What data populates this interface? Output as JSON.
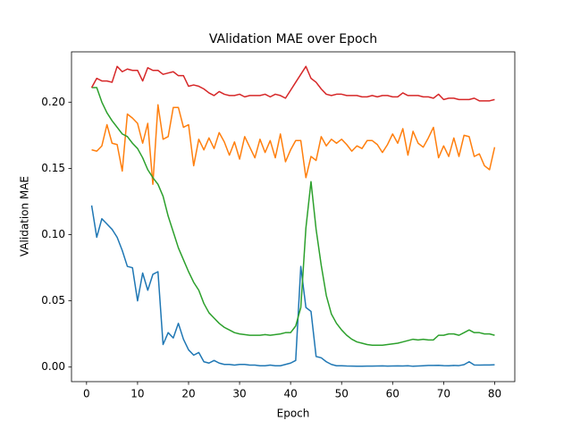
{
  "chart_data": {
    "type": "line",
    "title": "VAlidation MAE over Epoch",
    "x_label": "Epoch",
    "y_label": "VAlidation MAE",
    "x": [
      1,
      2,
      3,
      4,
      5,
      6,
      7,
      8,
      9,
      10,
      11,
      12,
      13,
      14,
      15,
      16,
      17,
      18,
      19,
      20,
      21,
      22,
      23,
      24,
      25,
      26,
      27,
      28,
      29,
      30,
      31,
      32,
      33,
      34,
      35,
      36,
      37,
      38,
      39,
      40,
      41,
      42,
      43,
      44,
      45,
      46,
      47,
      48,
      49,
      50,
      51,
      52,
      53,
      54,
      55,
      56,
      57,
      58,
      59,
      60,
      61,
      62,
      63,
      64,
      65,
      66,
      67,
      68,
      69,
      70,
      71,
      72,
      73,
      74,
      75,
      76,
      77,
      78,
      79,
      80
    ],
    "series": [
      {
        "color": "#1f77b4",
        "values": [
          0.122,
          0.098,
          0.112,
          0.108,
          0.104,
          0.098,
          0.088,
          0.076,
          0.075,
          0.05,
          0.071,
          0.058,
          0.07,
          0.072,
          0.017,
          0.026,
          0.022,
          0.033,
          0.021,
          0.013,
          0.009,
          0.011,
          0.004,
          0.003,
          0.005,
          0.003,
          0.002,
          0.002,
          0.0015,
          0.002,
          0.002,
          0.0015,
          0.0015,
          0.001,
          0.001,
          0.0015,
          0.001,
          0.001,
          0.002,
          0.003,
          0.005,
          0.076,
          0.045,
          0.042,
          0.008,
          0.007,
          0.004,
          0.002,
          0.001,
          0.001,
          0.0008,
          0.0007,
          0.0006,
          0.0006,
          0.0007,
          0.0007,
          0.0008,
          0.0009,
          0.0007,
          0.0008,
          0.0009,
          0.0008,
          0.001,
          0.0006,
          0.0008,
          0.001,
          0.0012,
          0.0012,
          0.0013,
          0.0011,
          0.001,
          0.0012,
          0.0011,
          0.0018,
          0.004,
          0.0016,
          0.0015,
          0.0016,
          0.0016,
          0.0017
        ]
      },
      {
        "color": "#ff7f0e",
        "values": [
          0.164,
          0.163,
          0.167,
          0.183,
          0.169,
          0.168,
          0.148,
          0.191,
          0.188,
          0.184,
          0.169,
          0.184,
          0.138,
          0.198,
          0.172,
          0.174,
          0.196,
          0.196,
          0.181,
          0.183,
          0.152,
          0.172,
          0.164,
          0.173,
          0.165,
          0.177,
          0.17,
          0.16,
          0.17,
          0.157,
          0.174,
          0.166,
          0.158,
          0.172,
          0.162,
          0.171,
          0.158,
          0.176,
          0.155,
          0.164,
          0.171,
          0.171,
          0.143,
          0.159,
          0.156,
          0.174,
          0.167,
          0.172,
          0.169,
          0.172,
          0.168,
          0.163,
          0.167,
          0.165,
          0.171,
          0.171,
          0.168,
          0.162,
          0.168,
          0.176,
          0.169,
          0.18,
          0.16,
          0.178,
          0.169,
          0.166,
          0.173,
          0.181,
          0.158,
          0.167,
          0.159,
          0.173,
          0.159,
          0.175,
          0.174,
          0.159,
          0.161,
          0.152,
          0.149,
          0.166
        ]
      },
      {
        "color": "#2ca02c",
        "values": [
          0.211,
          0.211,
          0.2,
          0.192,
          0.186,
          0.181,
          0.176,
          0.174,
          0.169,
          0.165,
          0.158,
          0.149,
          0.143,
          0.138,
          0.129,
          0.114,
          0.102,
          0.09,
          0.081,
          0.072,
          0.064,
          0.058,
          0.048,
          0.041,
          0.037,
          0.033,
          0.03,
          0.028,
          0.026,
          0.025,
          0.0245,
          0.024,
          0.024,
          0.024,
          0.0245,
          0.024,
          0.0245,
          0.025,
          0.026,
          0.026,
          0.031,
          0.045,
          0.105,
          0.14,
          0.104,
          0.077,
          0.054,
          0.04,
          0.033,
          0.028,
          0.024,
          0.021,
          0.019,
          0.018,
          0.017,
          0.0165,
          0.0165,
          0.0165,
          0.017,
          0.0175,
          0.018,
          0.019,
          0.02,
          0.021,
          0.0205,
          0.021,
          0.0205,
          0.0205,
          0.024,
          0.024,
          0.025,
          0.025,
          0.024,
          0.026,
          0.028,
          0.026,
          0.026,
          0.025,
          0.025,
          0.024
        ]
      },
      {
        "color": "#d62728",
        "values": [
          0.211,
          0.218,
          0.216,
          0.216,
          0.215,
          0.227,
          0.223,
          0.225,
          0.224,
          0.224,
          0.216,
          0.226,
          0.224,
          0.224,
          0.221,
          0.222,
          0.223,
          0.22,
          0.22,
          0.212,
          0.213,
          0.212,
          0.21,
          0.207,
          0.205,
          0.208,
          0.206,
          0.205,
          0.205,
          0.206,
          0.204,
          0.205,
          0.205,
          0.205,
          0.206,
          0.204,
          0.206,
          0.205,
          0.203,
          0.209,
          0.215,
          0.221,
          0.227,
          0.218,
          0.215,
          0.21,
          0.206,
          0.205,
          0.206,
          0.206,
          0.205,
          0.205,
          0.205,
          0.204,
          0.204,
          0.205,
          0.204,
          0.205,
          0.205,
          0.204,
          0.204,
          0.207,
          0.205,
          0.205,
          0.205,
          0.204,
          0.204,
          0.203,
          0.206,
          0.202,
          0.203,
          0.203,
          0.202,
          0.202,
          0.202,
          0.203,
          0.201,
          0.201,
          0.201,
          0.202
        ]
      }
    ],
    "xlim": [
      -2.95,
      83.95
    ],
    "ylim": [
      -0.011,
      0.238
    ],
    "xticks": [
      0,
      10,
      20,
      30,
      40,
      50,
      60,
      70,
      80
    ],
    "yticks": [
      {
        "value": 0,
        "label": "0.00"
      },
      0.05,
      {
        "value": 0.1,
        "label": "0.10"
      },
      0.15,
      {
        "value": 0.2,
        "label": "0.20"
      }
    ]
  }
}
